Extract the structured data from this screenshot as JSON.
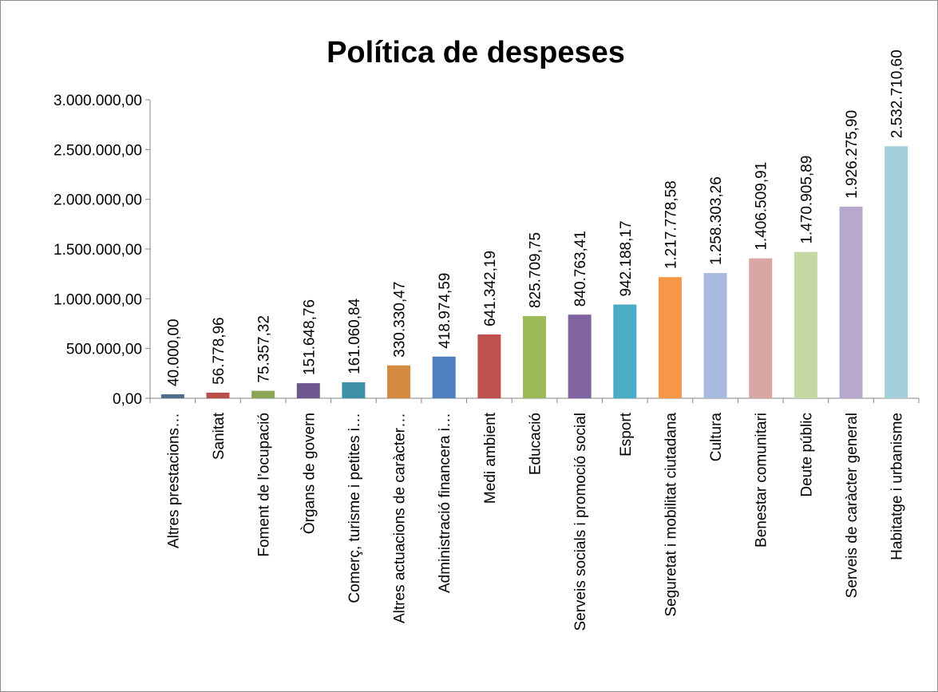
{
  "chart_data": {
    "type": "bar",
    "title": "Política de despeses",
    "xlabel": "",
    "ylabel": "",
    "ylim": [
      0,
      3000000
    ],
    "yticks": [
      0,
      500000,
      1000000,
      1500000,
      2000000,
      2500000,
      3000000
    ],
    "ytick_labels": [
      "0,00",
      "500.000,00",
      "1.000.000,00",
      "1.500.000,00",
      "2.000.000,00",
      "2.500.000,00",
      "3.000.000,00"
    ],
    "grid": false,
    "legend": "none",
    "categories": [
      "Altres prestacions…",
      "Sanitat",
      "Foment de l’ocupació",
      "Òrgans de govern",
      "Comerç, turisme i petites i…",
      "Altres actuacions de caràcter…",
      "Administració financera i…",
      "Medi ambient",
      "Educació",
      "Serveis socials i promoció social",
      "Esport",
      "Seguretat i mobilitat ciutadana",
      "Cultura",
      "Benestar comunitari",
      "Deute públic",
      "Serveis de caràcter general",
      "Habitatge i urbanisme"
    ],
    "values": [
      40000.0,
      56778.96,
      75357.32,
      151648.76,
      161060.84,
      330330.47,
      418974.59,
      641342.19,
      825709.75,
      840763.41,
      942188.17,
      1217778.58,
      1258303.26,
      1406509.91,
      1470905.89,
      1926275.9,
      2532710.6
    ],
    "data_labels": [
      "40.000,00",
      "56.778,96",
      "75.357,32",
      "151.648,76",
      "161.060,84",
      "330.330,47",
      "418.974,59",
      "641.342,19",
      "825.709,75",
      "840.763,41",
      "942.188,17",
      "1.217.778,58",
      "1.258.303,26",
      "1.406.509,91",
      "1.470.905,89",
      "1.926.275,90",
      "2.532.710,60"
    ],
    "colors": [
      "#4f6d8f",
      "#b94f4c",
      "#8ba656",
      "#6e578f",
      "#3f91a8",
      "#d48a40",
      "#4f7fbf",
      "#c0504d",
      "#9bbb59",
      "#8064a2",
      "#4bacc6",
      "#f79646",
      "#a7b9dc",
      "#d9a6a5",
      "#c5d8a4",
      "#b7a9cd",
      "#a3ceda"
    ]
  }
}
